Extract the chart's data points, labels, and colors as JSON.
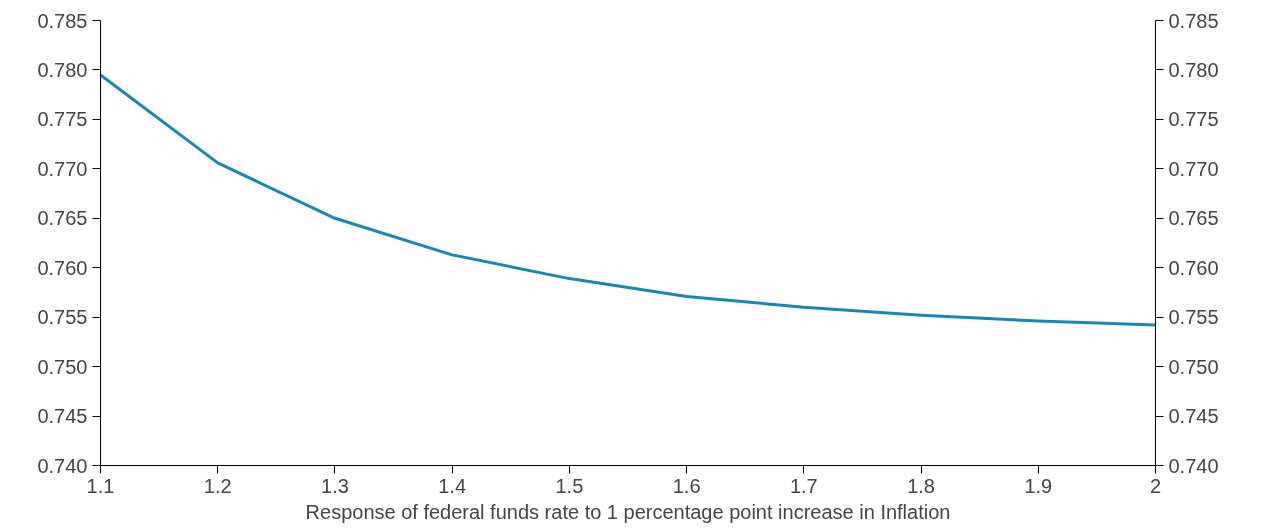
{
  "chart_data": {
    "type": "line",
    "xlabel": "Response of federal funds rate to 1 percentage point increase in Inflation",
    "x": [
      1.1,
      1.2,
      1.3,
      1.4,
      1.5,
      1.6,
      1.7,
      1.8,
      1.9,
      2.0
    ],
    "series": [
      {
        "color": "#1a87b0",
        "values": [
          0.7795,
          0.7706,
          0.765,
          0.7613,
          0.7589,
          0.7571,
          0.756,
          0.7552,
          0.7546,
          0.7542
        ]
      }
    ],
    "xlim": [
      1.1,
      2.0
    ],
    "xticks": [
      1.1,
      1.2,
      1.3,
      1.4,
      1.5,
      1.6,
      1.7,
      1.8,
      1.9,
      {
        "value": 2.0,
        "label": "2"
      }
    ],
    "ylim": [
      0.74,
      0.785
    ],
    "yticks": [
      {
        "value": 0.74,
        "label": "0.740"
      },
      0.745,
      {
        "value": 0.75,
        "label": "0.750"
      },
      0.755,
      {
        "value": 0.76,
        "label": "0.760"
      },
      0.765,
      {
        "value": 0.77,
        "label": "0.770"
      },
      0.775,
      {
        "value": 0.78,
        "label": "0.780"
      },
      0.785
    ],
    "y2lim": [
      0.74,
      0.785
    ],
    "y2ticks": [
      {
        "value": 0.74,
        "label": "0.740"
      },
      0.745,
      {
        "value": 0.75,
        "label": "0.750"
      },
      0.755,
      {
        "value": 0.76,
        "label": "0.760"
      },
      0.765,
      {
        "value": 0.77,
        "label": "0.770"
      },
      0.775,
      {
        "value": 0.78,
        "label": "0.780"
      },
      0.785
    ],
    "grid": false
  }
}
